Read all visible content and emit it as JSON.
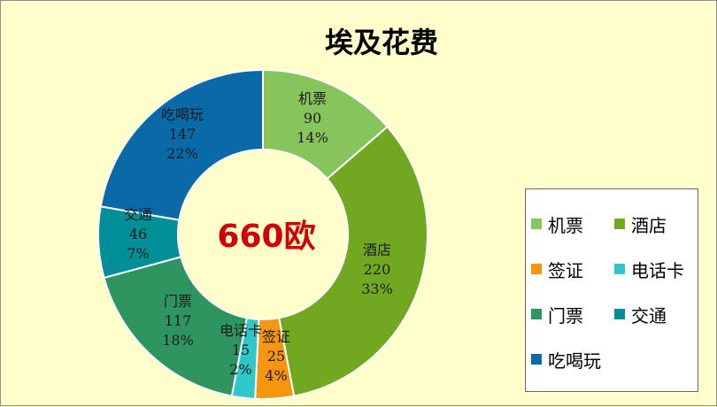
{
  "chart_data": {
    "type": "pie",
    "title": "埃及花费",
    "center_label": "660欧",
    "slices": [
      {
        "name": "机票",
        "value": 90,
        "percent": "14%",
        "color": "#86c55c"
      },
      {
        "name": "酒店",
        "value": 220,
        "percent": "33%",
        "color": "#72a820"
      },
      {
        "name": "签证",
        "value": 25,
        "percent": "4%",
        "color": "#f5960e"
      },
      {
        "name": "电话卡",
        "value": 15,
        "percent": "2%",
        "color": "#2fc7c9"
      },
      {
        "name": "门票",
        "value": 117,
        "percent": "18%",
        "color": "#2e9460"
      },
      {
        "name": "交通",
        "value": 46,
        "percent": "7%",
        "color": "#008f96"
      },
      {
        "name": "吃喝玩",
        "value": 147,
        "percent": "22%",
        "color": "#0a6aa8"
      }
    ],
    "legend_position": "right"
  }
}
